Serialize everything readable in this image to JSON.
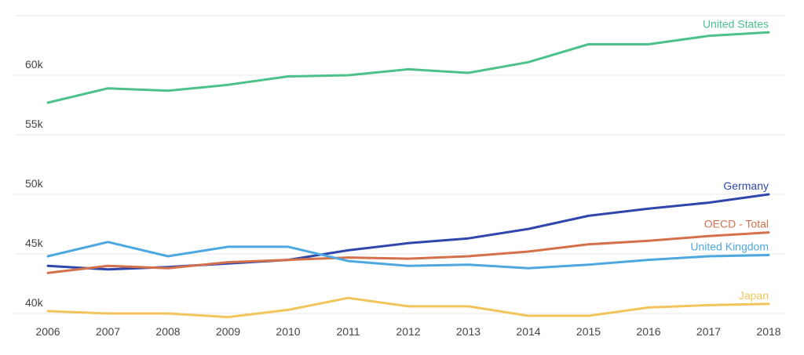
{
  "chart_data": {
    "type": "line",
    "title": "",
    "xlabel": "",
    "ylabel": "",
    "x": [
      "2006",
      "2007",
      "2008",
      "2009",
      "2010",
      "2011",
      "2012",
      "2013",
      "2014",
      "2015",
      "2016",
      "2017",
      "2018"
    ],
    "y_ticks": [
      {
        "value": 40000,
        "label": "40k"
      },
      {
        "value": 45000,
        "label": "45k"
      },
      {
        "value": 50000,
        "label": "50k"
      },
      {
        "value": 55000,
        "label": "55k"
      },
      {
        "value": 60000,
        "label": "60k"
      }
    ],
    "ylim": [
      39800,
      64200
    ],
    "grid": true,
    "legend": "inline-right",
    "series": [
      {
        "name": "United States",
        "color": "#4cc28a",
        "values": [
          57700,
          58900,
          58700,
          59200,
          59900,
          60000,
          60500,
          60200,
          61100,
          62600,
          62600,
          63300,
          63600
        ]
      },
      {
        "name": "Germany",
        "color": "#2f47ad",
        "values": [
          44000,
          43700,
          43900,
          44200,
          44500,
          45300,
          45900,
          46300,
          47100,
          48200,
          48800,
          49300,
          50000
        ]
      },
      {
        "name": "OECD - Total",
        "color": "#d4704a",
        "values": [
          43400,
          44000,
          43800,
          44300,
          44500,
          44700,
          44600,
          44800,
          45200,
          45800,
          46100,
          46500,
          46800
        ]
      },
      {
        "name": "United Kingdom",
        "color": "#4ea8e0",
        "values": [
          44800,
          46000,
          44800,
          45600,
          45600,
          44400,
          44000,
          44100,
          43800,
          44100,
          44500,
          44800,
          44900
        ]
      },
      {
        "name": "Japan",
        "color": "#f2c45a",
        "values": [
          40200,
          40000,
          40000,
          39700,
          40300,
          41300,
          40600,
          40600,
          39800,
          39800,
          40500,
          40700,
          40800
        ]
      }
    ]
  }
}
